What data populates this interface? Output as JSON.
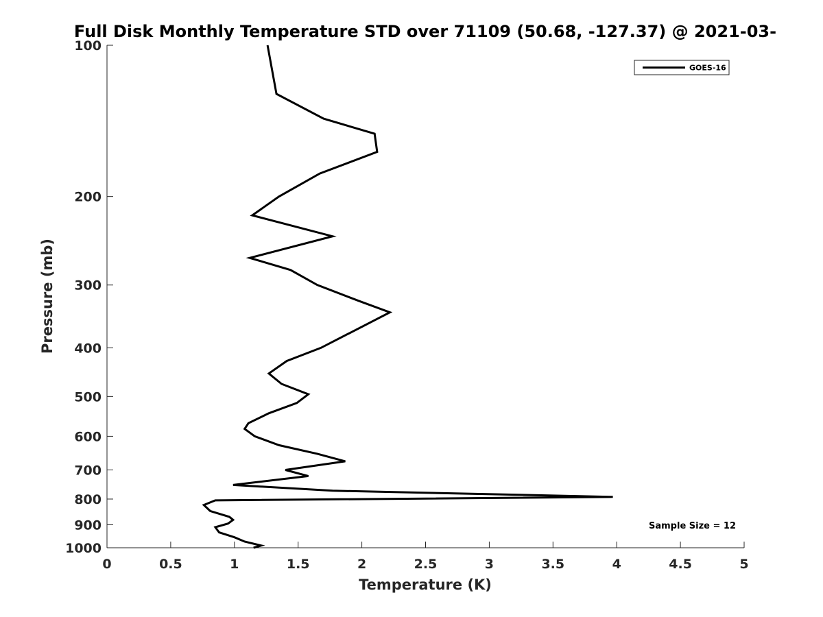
{
  "chart_data": {
    "type": "line",
    "title": "Full Disk Monthly Temperature STD over 71109 (50.68, -127.37) @ 2021-03-",
    "xlabel": "Temperature (K)",
    "ylabel": "Pressure (mb)",
    "xlim": [
      0,
      5
    ],
    "ylim": [
      100,
      1000
    ],
    "y_scale": "log",
    "y_reversed": true,
    "x_ticks": [
      "0",
      "0.5",
      "1",
      "1.5",
      "2",
      "2.5",
      "3",
      "3.5",
      "4",
      "4.5",
      "5"
    ],
    "y_ticks": [
      "100",
      "200",
      "300",
      "400",
      "500",
      "600",
      "700",
      "800",
      "900",
      "1000"
    ],
    "grid": false,
    "legend": {
      "position": "top-right",
      "entries": [
        "GOES-16"
      ]
    },
    "annotations": [
      "Sample Size = 12"
    ],
    "series": [
      {
        "name": "GOES-16",
        "color": "#000000",
        "x": [
          1.26,
          1.33,
          1.7,
          2.1,
          2.12,
          1.67,
          1.35,
          1.14,
          1.77,
          1.12,
          1.44,
          1.65,
          1.98,
          2.22,
          1.68,
          1.41,
          1.27,
          1.37,
          1.58,
          1.49,
          1.27,
          1.11,
          1.08,
          1.16,
          1.35,
          1.65,
          1.87,
          1.4,
          1.58,
          0.99,
          1.77,
          3.97,
          0.85,
          0.76,
          0.81,
          0.96,
          0.99,
          0.95,
          0.85,
          0.88,
          1.0,
          1.08,
          1.21,
          1.15
        ],
        "y": [
          100,
          125,
          140,
          150,
          163,
          180,
          200,
          218,
          240,
          265,
          280,
          300,
          323,
          340,
          400,
          425,
          450,
          472,
          495,
          515,
          540,
          565,
          580,
          600,
          625,
          650,
          673,
          700,
          720,
          750,
          770,
          792,
          805,
          822,
          845,
          868,
          880,
          895,
          910,
          932,
          953,
          972,
          990,
          1000
        ]
      }
    ]
  }
}
